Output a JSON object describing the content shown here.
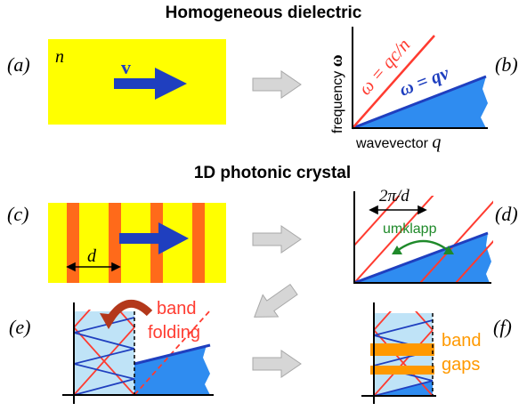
{
  "titles": {
    "homogeneous": "Homogeneous dielectric",
    "photonic": "1D photonic crystal"
  },
  "panel_labels": {
    "a": "(a)",
    "b": "(b)",
    "c": "(c)",
    "d": "(d)",
    "e": "(e)",
    "f": "(f)"
  },
  "panel_a": {
    "n_label": "n",
    "v_label": "v"
  },
  "panel_b": {
    "y_axis_word": "frequency",
    "y_axis_symbol": "ω",
    "x_axis_word": "wavevector",
    "x_axis_symbol": "q",
    "light_line_label": "ω = qc/n",
    "particle_line_label": "ω = qv"
  },
  "panel_c": {
    "period_label": "d"
  },
  "panel_d": {
    "period_label": "2π/d",
    "umklapp_label": "umklapp"
  },
  "panel_e": {
    "band_label": "band",
    "folding_label": "folding"
  },
  "panel_f": {
    "band_label": "band",
    "gaps_label": "gaps"
  },
  "colors": {
    "yellow": "#ffff00",
    "orange_stripe": "#ff6a1a",
    "blue_arrow": "#1f3fbf",
    "red_line": "#ff3b30",
    "cone_blue": "#2f8cf0",
    "light_blue": "#bfe3f7",
    "green": "#1f8a2a",
    "gap_orange": "#ff9900",
    "gray_arrow": "#d6d6d6",
    "curved_arrow": "#b3381b"
  }
}
